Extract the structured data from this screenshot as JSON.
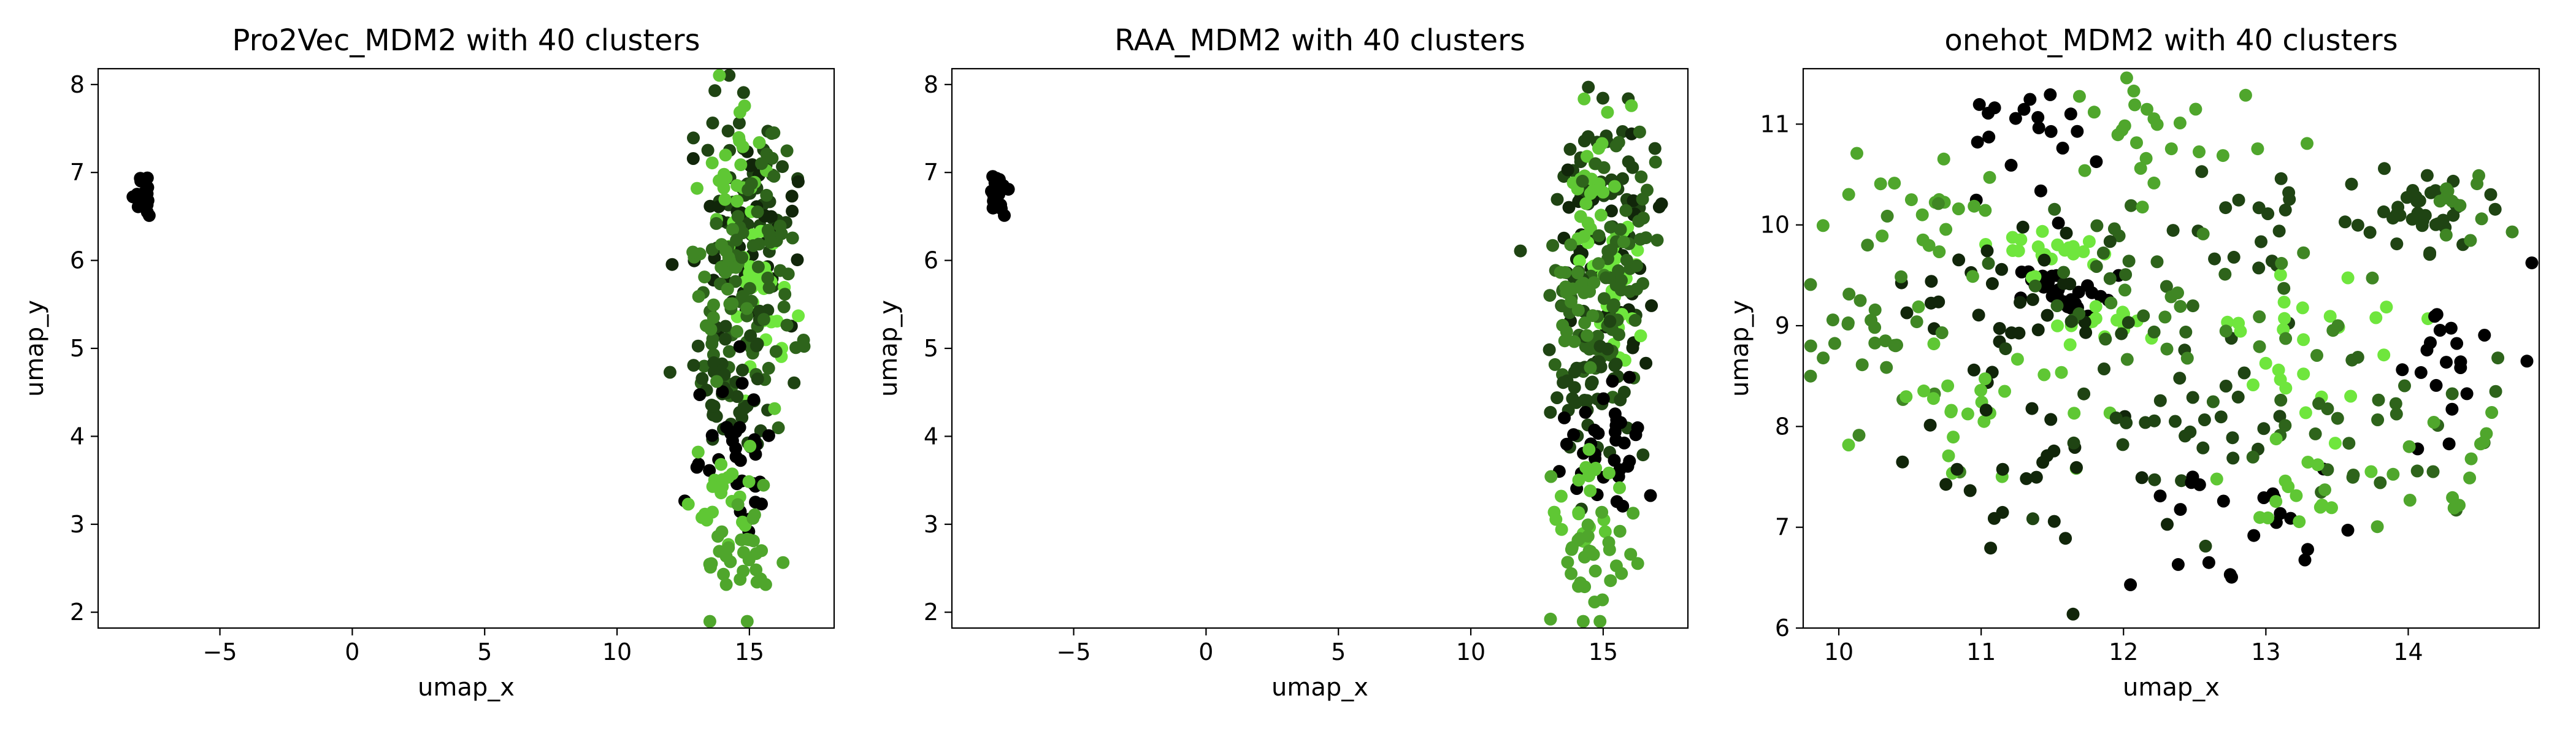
{
  "palette": [
    "#000000",
    "#11260a",
    "#1f4413",
    "#2e641b",
    "#3f8624",
    "#4fa62c",
    "#5fc734",
    "#6fe63d"
  ],
  "chart_data": [
    {
      "type": "scatter",
      "title": "Pro2Vec_MDM2 with 40 clusters",
      "xlabel": "umap_x",
      "ylabel": "umap_y",
      "xlim": [
        -9.6,
        18.2
      ],
      "ylim": [
        1.82,
        8.18
      ],
      "xticks": [
        -5,
        0,
        5,
        10,
        15
      ],
      "yticks": [
        2,
        3,
        4,
        5,
        6,
        7,
        8
      ],
      "legend": "none",
      "grid": false,
      "clusters": [
        {
          "x": -7.9,
          "y": 6.75,
          "sx": 0.18,
          "sy": 0.12,
          "n": 24,
          "tone": 0
        },
        {
          "x": 14.9,
          "y": 6.8,
          "sx": 0.9,
          "sy": 0.55,
          "n": 45,
          "tone": 2
        },
        {
          "x": 15.2,
          "y": 6.0,
          "sx": 0.9,
          "sy": 0.5,
          "n": 45,
          "tone": 1
        },
        {
          "x": 15.4,
          "y": 5.7,
          "sx": 0.6,
          "sy": 0.5,
          "n": 30,
          "tone": 7
        },
        {
          "x": 14.5,
          "y": 7.0,
          "sx": 0.5,
          "sy": 0.4,
          "n": 25,
          "tone": 6
        },
        {
          "x": 14.7,
          "y": 5.2,
          "sx": 1.0,
          "sy": 0.55,
          "n": 45,
          "tone": 3
        },
        {
          "x": 14.5,
          "y": 4.5,
          "sx": 1.0,
          "sy": 0.5,
          "n": 45,
          "tone": 2
        },
        {
          "x": 14.8,
          "y": 3.8,
          "sx": 0.9,
          "sy": 0.45,
          "n": 35,
          "tone": 0
        },
        {
          "x": 14.3,
          "y": 3.3,
          "sx": 0.7,
          "sy": 0.3,
          "n": 22,
          "tone": 6
        },
        {
          "x": 14.6,
          "y": 2.6,
          "sx": 0.8,
          "sy": 0.35,
          "n": 32,
          "tone": 5
        },
        {
          "x": 14.0,
          "y": 5.8,
          "sx": 0.6,
          "sy": 0.5,
          "n": 25,
          "tone": 4
        },
        {
          "x": 15.7,
          "y": 6.4,
          "sx": 0.7,
          "sy": 0.6,
          "n": 30,
          "tone": 3
        }
      ]
    },
    {
      "type": "scatter",
      "title": "RAA_MDM2 with 40 clusters",
      "xlabel": "umap_x",
      "ylabel": "umap_y",
      "xlim": [
        -9.6,
        18.2
      ],
      "ylim": [
        1.82,
        8.18
      ],
      "xticks": [
        -5,
        0,
        5,
        10,
        15
      ],
      "yticks": [
        2,
        3,
        4,
        5,
        6,
        7,
        8
      ],
      "legend": "none",
      "grid": false,
      "clusters": [
        {
          "x": -7.9,
          "y": 6.75,
          "sx": 0.18,
          "sy": 0.12,
          "n": 24,
          "tone": 0
        },
        {
          "x": 14.9,
          "y": 6.8,
          "sx": 0.9,
          "sy": 0.55,
          "n": 45,
          "tone": 2
        },
        {
          "x": 15.2,
          "y": 6.0,
          "sx": 0.9,
          "sy": 0.5,
          "n": 45,
          "tone": 1
        },
        {
          "x": 15.4,
          "y": 5.7,
          "sx": 0.6,
          "sy": 0.5,
          "n": 30,
          "tone": 7
        },
        {
          "x": 14.5,
          "y": 7.0,
          "sx": 0.5,
          "sy": 0.4,
          "n": 25,
          "tone": 6
        },
        {
          "x": 14.7,
          "y": 5.2,
          "sx": 1.0,
          "sy": 0.55,
          "n": 45,
          "tone": 3
        },
        {
          "x": 14.5,
          "y": 4.5,
          "sx": 1.0,
          "sy": 0.5,
          "n": 45,
          "tone": 2
        },
        {
          "x": 14.8,
          "y": 3.8,
          "sx": 0.9,
          "sy": 0.45,
          "n": 35,
          "tone": 0
        },
        {
          "x": 14.3,
          "y": 3.3,
          "sx": 0.7,
          "sy": 0.3,
          "n": 22,
          "tone": 6
        },
        {
          "x": 14.6,
          "y": 2.6,
          "sx": 0.8,
          "sy": 0.35,
          "n": 32,
          "tone": 5
        },
        {
          "x": 14.0,
          "y": 5.8,
          "sx": 0.6,
          "sy": 0.5,
          "n": 25,
          "tone": 4
        },
        {
          "x": 15.7,
          "y": 6.4,
          "sx": 0.7,
          "sy": 0.6,
          "n": 30,
          "tone": 3
        }
      ]
    },
    {
      "type": "scatter",
      "title": "onehot_MDM2 with 40 clusters",
      "xlabel": "umap_x",
      "ylabel": "umap_y",
      "xlim": [
        9.75,
        14.92
      ],
      "ylim": [
        6.0,
        11.55
      ],
      "xticks": [
        10,
        11,
        12,
        13,
        14
      ],
      "yticks": [
        6,
        7,
        8,
        9,
        10,
        11
      ],
      "legend": "none",
      "grid": false,
      "clusters": [
        {
          "x": 11.6,
          "y": 9.35,
          "sx": 0.18,
          "sy": 0.13,
          "n": 30,
          "tone": 0
        },
        {
          "x": 11.55,
          "y": 9.75,
          "sx": 0.25,
          "sy": 0.1,
          "n": 22,
          "tone": 7
        },
        {
          "x": 11.9,
          "y": 9.0,
          "sx": 0.3,
          "sy": 0.12,
          "n": 15,
          "tone": 7
        },
        {
          "x": 11.2,
          "y": 9.2,
          "sx": 0.35,
          "sy": 0.35,
          "n": 30,
          "tone": 1
        },
        {
          "x": 12.1,
          "y": 9.5,
          "sx": 0.35,
          "sy": 0.35,
          "n": 25,
          "tone": 3
        },
        {
          "x": 14.15,
          "y": 10.1,
          "sx": 0.22,
          "sy": 0.18,
          "n": 32,
          "tone": 2
        },
        {
          "x": 14.3,
          "y": 10.2,
          "sx": 0.2,
          "sy": 0.15,
          "n": 12,
          "tone": 4
        },
        {
          "x": 11.3,
          "y": 10.8,
          "sx": 0.3,
          "sy": 0.25,
          "n": 20,
          "tone": 0
        },
        {
          "x": 12.3,
          "y": 10.9,
          "sx": 0.4,
          "sy": 0.3,
          "n": 25,
          "tone": 5
        },
        {
          "x": 10.6,
          "y": 10.2,
          "sx": 0.35,
          "sy": 0.35,
          "n": 22,
          "tone": 5
        },
        {
          "x": 13.0,
          "y": 10.0,
          "sx": 0.4,
          "sy": 0.4,
          "n": 25,
          "tone": 2
        },
        {
          "x": 10.3,
          "y": 9.0,
          "sx": 0.3,
          "sy": 0.45,
          "n": 30,
          "tone": 4
        },
        {
          "x": 10.9,
          "y": 8.3,
          "sx": 0.35,
          "sy": 0.4,
          "n": 25,
          "tone": 6
        },
        {
          "x": 11.4,
          "y": 7.5,
          "sx": 0.45,
          "sy": 0.4,
          "n": 25,
          "tone": 1
        },
        {
          "x": 12.3,
          "y": 8.2,
          "sx": 0.45,
          "sy": 0.5,
          "n": 35,
          "tone": 2
        },
        {
          "x": 12.8,
          "y": 7.1,
          "sx": 0.4,
          "sy": 0.35,
          "n": 22,
          "tone": 0
        },
        {
          "x": 13.4,
          "y": 8.8,
          "sx": 0.4,
          "sy": 0.4,
          "n": 25,
          "tone": 7
        },
        {
          "x": 13.8,
          "y": 8.0,
          "sx": 0.5,
          "sy": 0.5,
          "n": 30,
          "tone": 3
        },
        {
          "x": 14.4,
          "y": 8.5,
          "sx": 0.35,
          "sy": 0.45,
          "n": 20,
          "tone": 0
        },
        {
          "x": 13.2,
          "y": 7.4,
          "sx": 0.3,
          "sy": 0.3,
          "n": 15,
          "tone": 6
        },
        {
          "x": 14.2,
          "y": 7.4,
          "sx": 0.35,
          "sy": 0.35,
          "n": 15,
          "tone": 5
        },
        {
          "x": 12.8,
          "y": 9.2,
          "sx": 0.35,
          "sy": 0.3,
          "n": 20,
          "tone": 4
        }
      ]
    }
  ]
}
